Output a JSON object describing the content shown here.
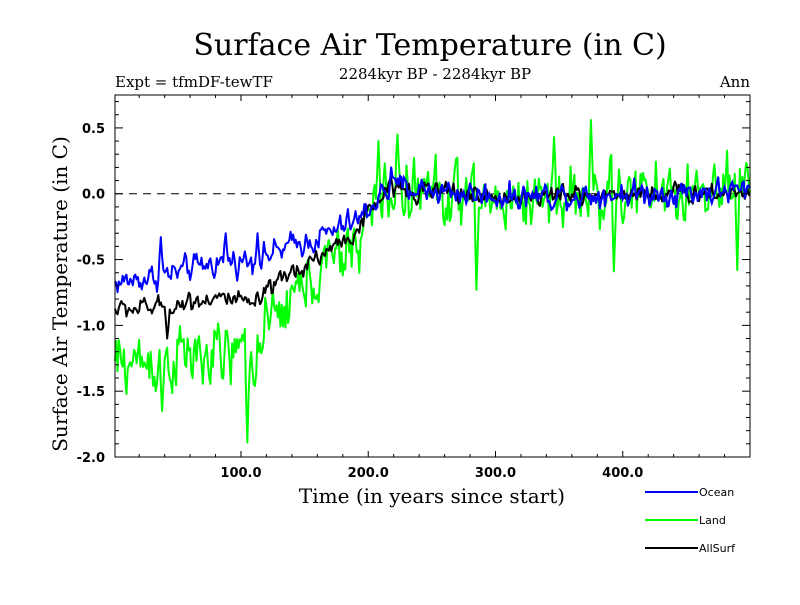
{
  "chart_data": {
    "type": "line",
    "title": "Surface Air Temperature (in C)",
    "subtitle": "2284kyr BP - 2284kyr BP",
    "left_note": "Expt = tfmDF-tewTF",
    "right_note": "Ann",
    "xlabel": "Time (in years since start)",
    "ylabel": "Surface Air Temperature (in C)",
    "xlim": [
      1,
      500
    ],
    "ylim": [
      -2.0,
      0.75
    ],
    "x_ticks": [
      100,
      200,
      300,
      400
    ],
    "x_tick_labels": [
      "100.0",
      "200.0",
      "300.0",
      "400.0"
    ],
    "y_ticks": [
      -2.0,
      -1.5,
      -1.0,
      -0.5,
      0.0,
      0.5
    ],
    "y_tick_labels": [
      "-2.0",
      "-1.5",
      "-1.0",
      "-0.5",
      "0.0",
      "0.5"
    ],
    "reference_line": 0.0,
    "grid": false,
    "legend_position": "bottom-right",
    "series": [
      {
        "name": "Ocean",
        "color": "#0000ff",
        "n_years": 500,
        "anchors": [
          [
            1,
            -0.68
          ],
          [
            50,
            -0.6
          ],
          [
            80,
            -0.52
          ],
          [
            110,
            -0.5
          ],
          [
            140,
            -0.4
          ],
          [
            170,
            -0.3
          ],
          [
            195,
            -0.18
          ],
          [
            210,
            0.0
          ],
          [
            225,
            0.05
          ],
          [
            300,
            -0.02
          ],
          [
            400,
            0.0
          ],
          [
            500,
            0.02
          ]
        ],
        "noise_amplitude": 0.08,
        "marked_values": [
          [
            37,
            -0.33
          ],
          [
            88,
            -0.3
          ],
          [
            113,
            -0.3
          ],
          [
            218,
            0.2
          ],
          [
            220,
            0.12
          ]
        ]
      },
      {
        "name": "Land",
        "color": "#00ff00",
        "n_years": 500,
        "anchors": [
          [
            1,
            -1.3
          ],
          [
            40,
            -1.25
          ],
          [
            80,
            -1.25
          ],
          [
            110,
            -1.2
          ],
          [
            135,
            -0.85
          ],
          [
            160,
            -0.6
          ],
          [
            185,
            -0.45
          ],
          [
            205,
            -0.1
          ],
          [
            225,
            0.05
          ],
          [
            300,
            -0.05
          ],
          [
            400,
            0.0
          ],
          [
            500,
            0.0
          ]
        ],
        "noise_amplitude": 0.2,
        "marked_values": [
          [
            38,
            -1.65
          ],
          [
            105,
            -1.89
          ],
          [
            208,
            0.4
          ],
          [
            223,
            0.45
          ],
          [
            375,
            0.56
          ],
          [
            346,
            0.43
          ],
          [
            285,
            -0.73
          ],
          [
            393,
            -0.59
          ],
          [
            490,
            -0.58
          ]
        ]
      },
      {
        "name": "AllSurf",
        "color": "#000000",
        "n_years": 500,
        "anchors": [
          [
            1,
            -0.88
          ],
          [
            40,
            -0.86
          ],
          [
            80,
            -0.78
          ],
          [
            110,
            -0.85
          ],
          [
            140,
            -0.6
          ],
          [
            165,
            -0.45
          ],
          [
            190,
            -0.3
          ],
          [
            210,
            -0.02
          ],
          [
            225,
            0.05
          ],
          [
            300,
            -0.03
          ],
          [
            400,
            0.0
          ],
          [
            500,
            0.01
          ]
        ],
        "noise_amplitude": 0.06,
        "marked_values": [
          [
            42,
            -1.1
          ],
          [
            218,
            0.12
          ]
        ]
      }
    ]
  }
}
